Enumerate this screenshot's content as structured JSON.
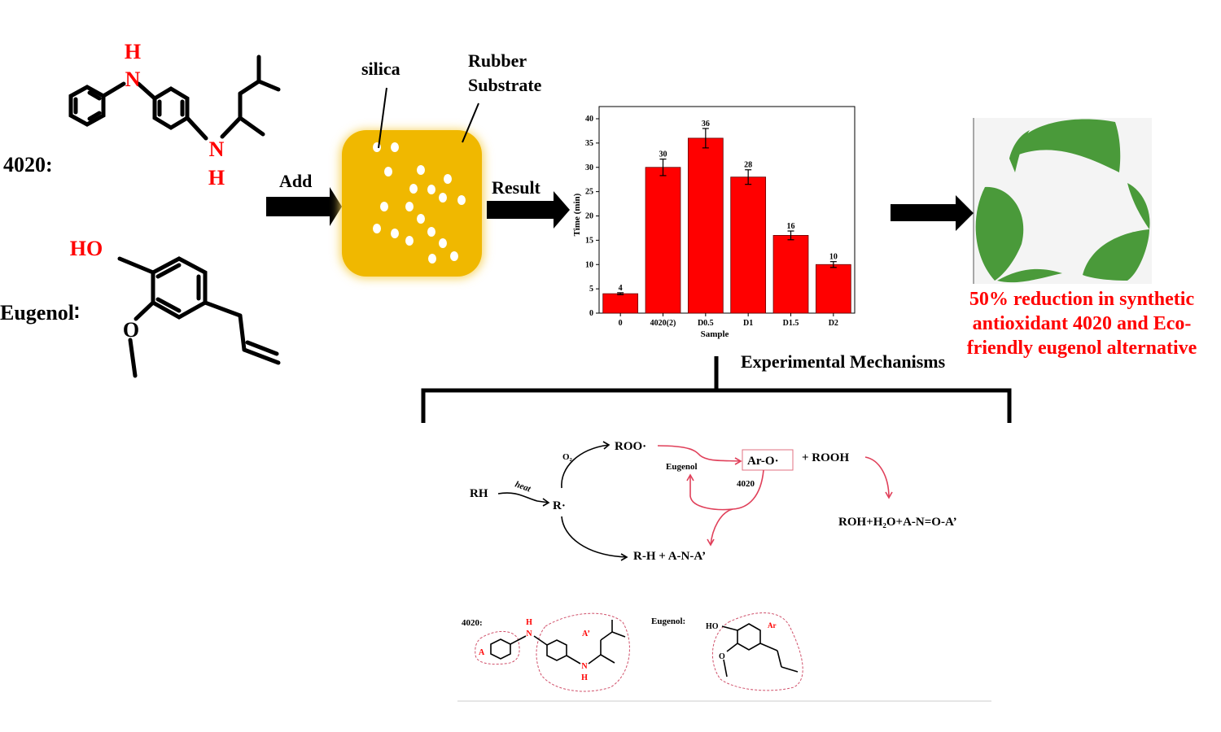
{
  "left": {
    "label_4020": "4020:",
    "label_eugenol": "Eugenol∶",
    "atom_n": "N",
    "atom_h": "H",
    "atom_ho": "HO",
    "atom_o": "O"
  },
  "substrate": {
    "silica_label": "silica",
    "rubber_label_line1": "Rubber",
    "rubber_label_line2": "Substrate",
    "fill_color": "#f0b800"
  },
  "arrows": {
    "add_label": "Add",
    "result_label": "Result"
  },
  "chart_data": {
    "type": "bar",
    "categories": [
      "0",
      "4020(2)",
      "D0.5",
      "D1",
      "D1.5",
      "D2"
    ],
    "values": [
      4,
      30,
      36,
      28,
      16,
      10
    ],
    "errors": [
      0.2,
      1.7,
      2,
      1.5,
      0.9,
      0.6
    ],
    "data_labels": [
      "4",
      "30",
      "36",
      "28",
      "16",
      "10"
    ],
    "xlabel": "Sample",
    "ylabel": "Time (min)",
    "ylim": [
      0,
      40
    ],
    "yticks": [
      "0",
      "5",
      "10",
      "15",
      "20",
      "25",
      "30",
      "35",
      "40"
    ],
    "bar_color": "#ff0000"
  },
  "outcome": {
    "line1": "50% reduction in synthetic",
    "line2": "antioxidant 4020 and Eco-",
    "line3": "friendly eugenol alternative",
    "leaf_color": "#4a9a3a"
  },
  "mechanism": {
    "title": "Experimental Mechanisms",
    "rh": "RH",
    "heat": "heat",
    "r_radical": "R·",
    "o2": "O₂",
    "roo": "ROO·",
    "aro": "Ar-O·",
    "plus_rooh": "+  ROOH",
    "eugenol": "Eugenol",
    "n4020": "4020",
    "products_right": "ROH+H₂O+A-N=O-A’",
    "products_bottom": "R-H  +  A-N-A’"
  },
  "structures": {
    "label_4020": "4020:",
    "label_eugenol": "Eugenol:",
    "atom_n": "N",
    "atom_h": "H",
    "group_a": "A",
    "group_a_prime": "A’",
    "atom_ho": "HO",
    "atom_o": "O",
    "group_ar": "Ar"
  }
}
